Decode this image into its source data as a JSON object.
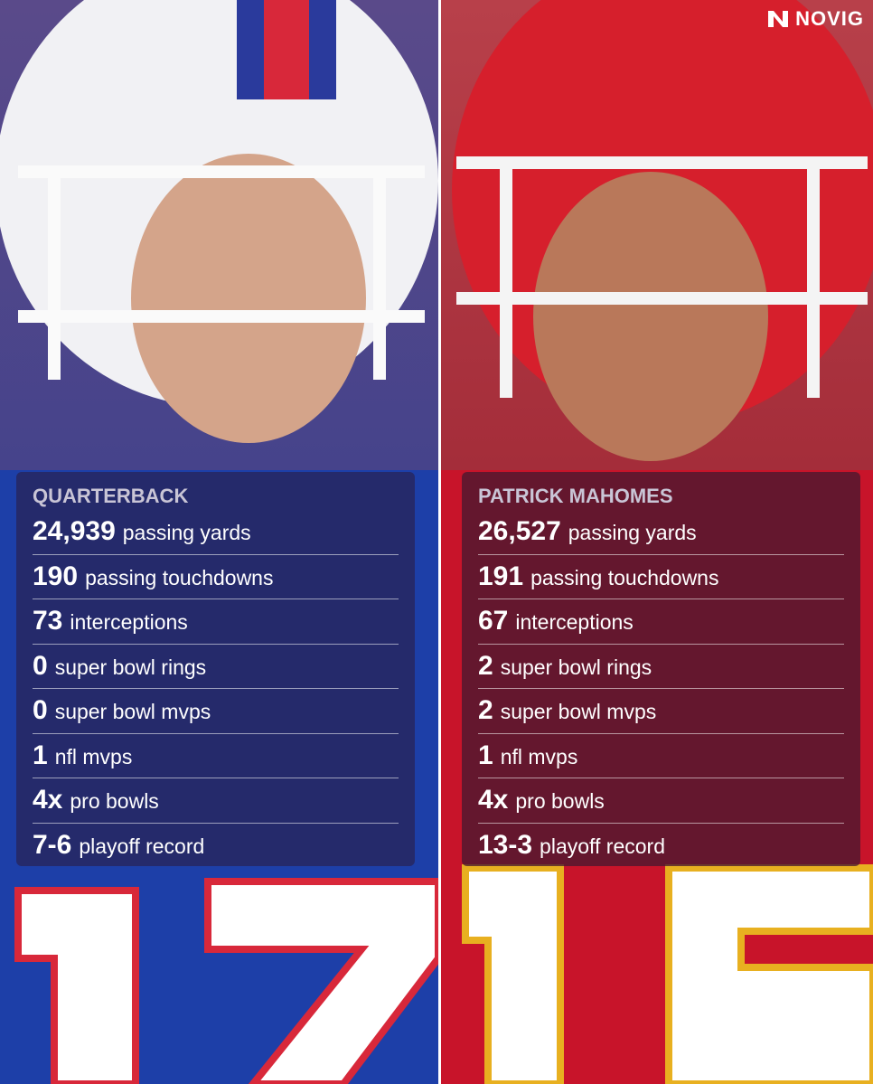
{
  "brand": "NOVIG",
  "panels": [
    {
      "heading": "QUARTERBACK",
      "stats": [
        {
          "value": "24,939",
          "label": "passing yards"
        },
        {
          "value": "190",
          "label": "passing touchdowns"
        },
        {
          "value": "73",
          "label": "interceptions"
        },
        {
          "value": "0",
          "label": "super bowl rings"
        },
        {
          "value": "0",
          "label": "super bowl mvps"
        },
        {
          "value": "1",
          "label": "nfl mvps"
        },
        {
          "value": "4x",
          "label": "pro bowls"
        },
        {
          "value": "7-6",
          "label": "playoff record"
        }
      ]
    },
    {
      "heading": "PATRICK MAHOMES",
      "stats": [
        {
          "value": "26,527",
          "label": "passing yards"
        },
        {
          "value": "191",
          "label": "passing touchdowns"
        },
        {
          "value": "67",
          "label": "interceptions"
        },
        {
          "value": "2",
          "label": "super bowl rings"
        },
        {
          "value": "2",
          "label": "super bowl mvps"
        },
        {
          "value": "1",
          "label": "nfl mvps"
        },
        {
          "value": "4x",
          "label": "pro bowls"
        },
        {
          "value": "13-3",
          "label": "playoff record"
        }
      ]
    }
  ]
}
